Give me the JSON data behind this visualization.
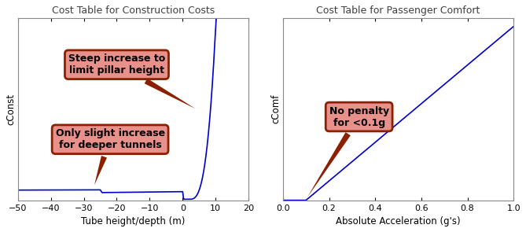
{
  "title1": "Cost Table for Construction Costs",
  "title2": "Cost Table for Passenger Comfort",
  "xlabel1": "Tube height/depth (m)",
  "ylabel1": "cConst",
  "xlabel2": "Absolute Acceleration (g's)",
  "ylabel2": "cComf",
  "xlim1": [
    -50,
    20
  ],
  "xlim2": [
    0,
    1
  ],
  "xticks1": [
    -50,
    -40,
    -30,
    -20,
    -10,
    0,
    10,
    20
  ],
  "xticks2": [
    0,
    0.2,
    0.4,
    0.6,
    0.8,
    1.0
  ],
  "line_color": "#0000CC",
  "annotation_bg": "#E8908A",
  "annotation_edge": "#8B2000",
  "annotation_text_color": "#000000",
  "annot1_upper_text": "Steep increase to\nlimit pillar height",
  "annot1_lower_text": "Only slight increase\nfor deeper tunnels",
  "annot2_text": "No penalty\nfor <0.1g",
  "title_color": "#404040",
  "title_fontsize": 9,
  "label_fontsize": 8.5,
  "tick_fontsize": 8,
  "annot_fontsize": 9
}
